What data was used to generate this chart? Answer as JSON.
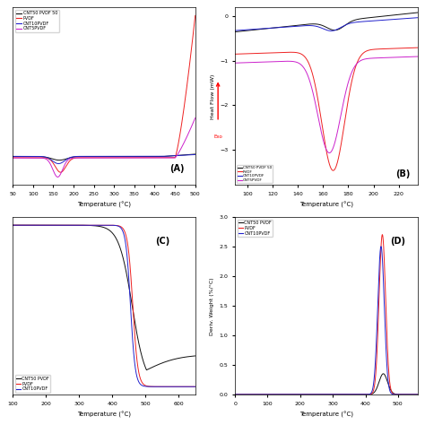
{
  "panel_A": {
    "title": "(A)",
    "xlabel": "Temperature (°C)",
    "xlim": [
      50,
      500
    ],
    "series": [
      {
        "label": "CNT50 PVDF 50",
        "color": "#111111"
      },
      {
        "label": "PVDF",
        "color": "#ee2222"
      },
      {
        "label": "CNT10PVDF",
        "color": "#2222cc"
      },
      {
        "label": "CNT5PVDF",
        "color": "#cc22cc"
      }
    ]
  },
  "panel_B": {
    "title": "(B)",
    "xlabel": "Temperature (°C)",
    "ylabel": "Heat Flow (mW)",
    "xlim": [
      90,
      235
    ],
    "ylim": [
      -3.8,
      0.2
    ],
    "yticks": [
      0,
      -1,
      -2,
      -3
    ],
    "series": [
      {
        "label": "CNT50 PVDF 50",
        "color": "#111111"
      },
      {
        "label": "PVDF",
        "color": "#ee2222"
      },
      {
        "label": "CNT10PVDF",
        "color": "#2222cc"
      },
      {
        "label": "CNT5PVDF",
        "color": "#cc22cc"
      }
    ]
  },
  "panel_C": {
    "title": "(C)",
    "xlabel": "Temperature (°C)",
    "xlim": [
      100,
      650
    ],
    "series": [
      {
        "label": "CNT50 PVDF",
        "color": "#111111"
      },
      {
        "label": "PVDF",
        "color": "#ee2222"
      },
      {
        "label": "CNT10PVDF",
        "color": "#2222cc"
      }
    ]
  },
  "panel_D": {
    "title": "(D)",
    "xlabel": "Temperature (°C)",
    "ylabel": "Deriv. Weight (%/°C)",
    "xlim": [
      0,
      560
    ],
    "ylim": [
      0,
      3.0
    ],
    "yticks": [
      0.0,
      0.5,
      1.0,
      1.5,
      2.0,
      2.5,
      3.0
    ],
    "series": [
      {
        "label": "CNT50 PVDF",
        "color": "#111111"
      },
      {
        "label": "PVDF",
        "color": "#ee2222"
      },
      {
        "label": "CNT10PVDF",
        "color": "#2222cc"
      }
    ]
  },
  "bg": "#ffffff"
}
